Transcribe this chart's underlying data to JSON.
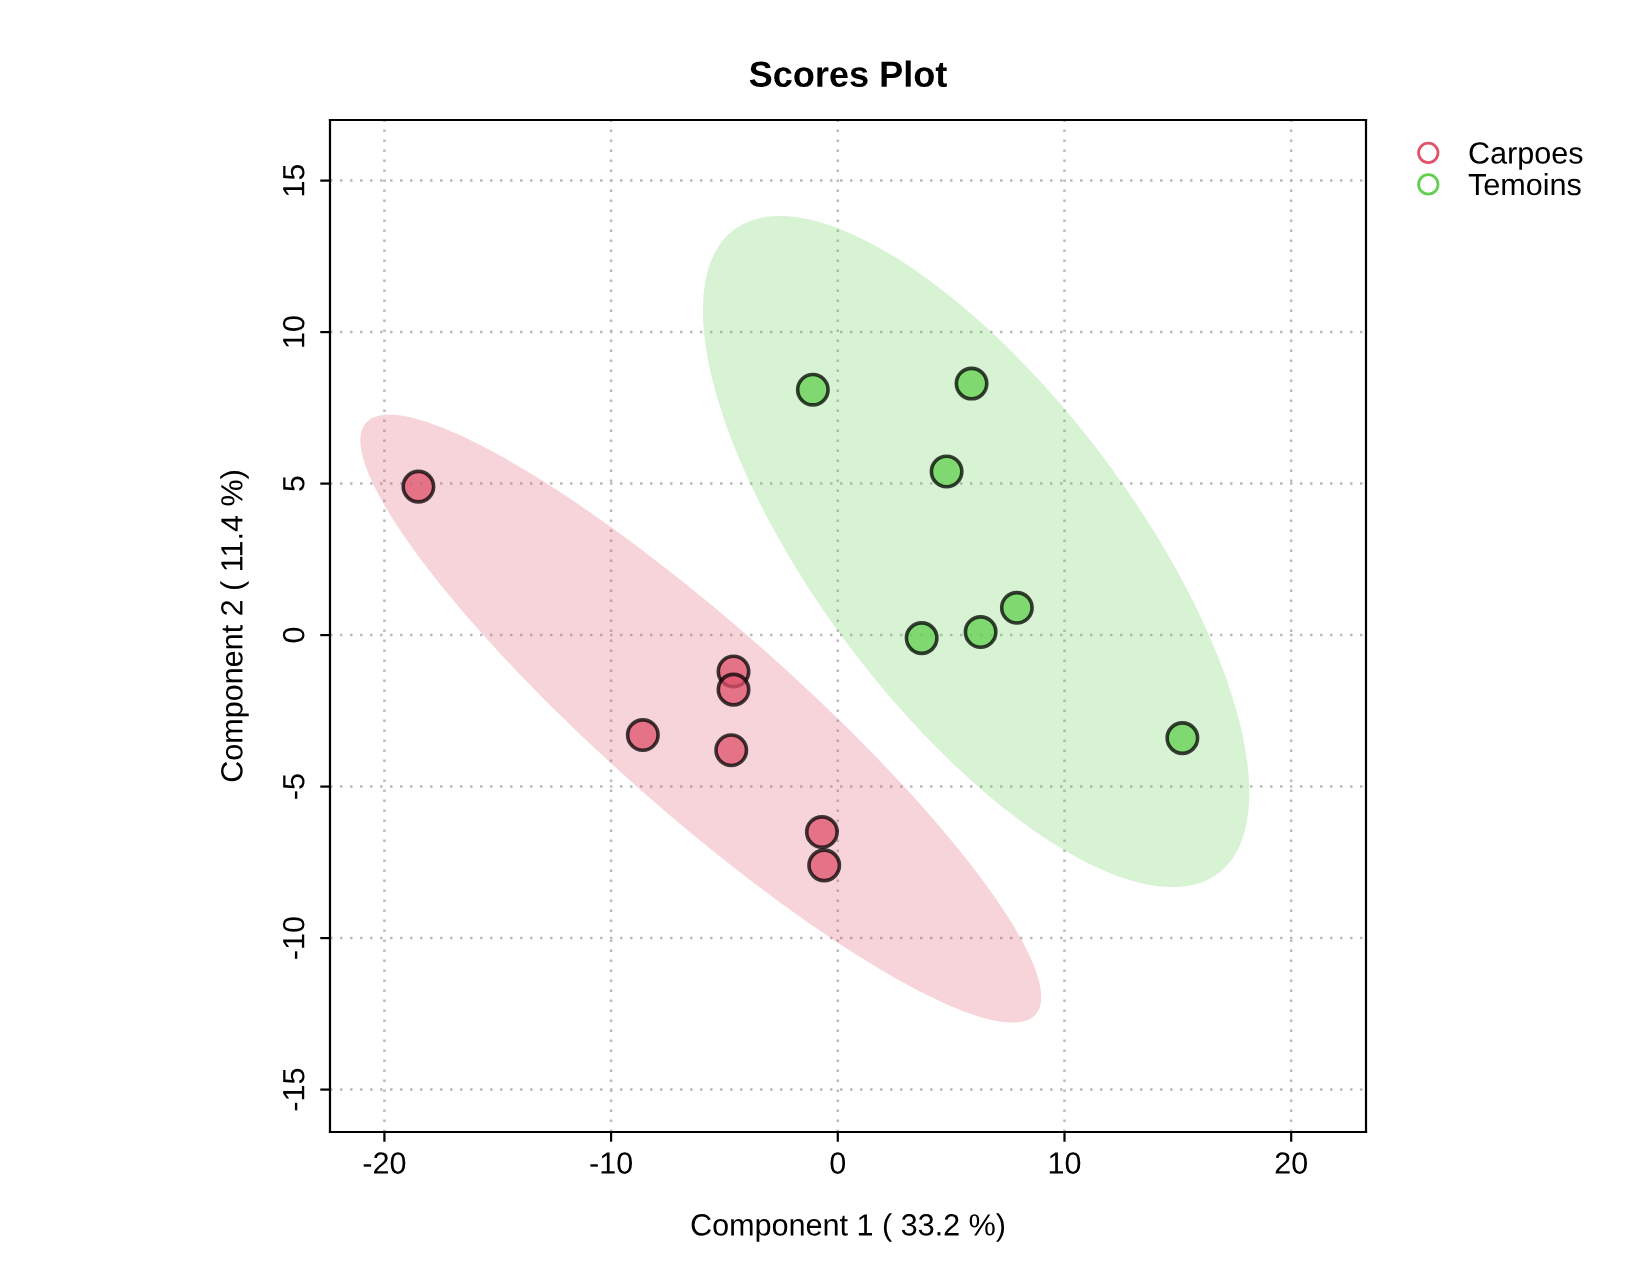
{
  "chart_data": {
    "type": "scatter",
    "title": "Scores Plot",
    "xlabel": "Component 1 ( 33.2 %)",
    "ylabel": "Component 2 ( 11.4 %)",
    "series": [
      {
        "name": "Carpoes",
        "color": "#df536b",
        "x": [
          -18.5,
          -8.6,
          -4.6,
          -4.6,
          -4.7,
          -0.7,
          -0.6
        ],
        "values": [
          4.9,
          -3.3,
          -1.2,
          -1.8,
          -3.8,
          -6.5,
          -7.6
        ]
      },
      {
        "name": "Temoins",
        "color": "#61d04f",
        "x": [
          -1.1,
          5.9,
          4.8,
          3.7,
          6.3,
          7.9,
          15.2
        ],
        "values": [
          8.1,
          8.3,
          5.4,
          -0.1,
          0.1,
          0.9,
          -3.4
        ]
      }
    ],
    "xlim": [
      -22.4,
      23.3
    ],
    "ylim": [
      -16.4,
      17.0
    ],
    "xticks": [
      -20,
      -10,
      0,
      10,
      20
    ],
    "yticks": [
      -15,
      -10,
      -5,
      0,
      5,
      10,
      15
    ],
    "grid": true,
    "legend": "top right",
    "marker": "circle"
  }
}
